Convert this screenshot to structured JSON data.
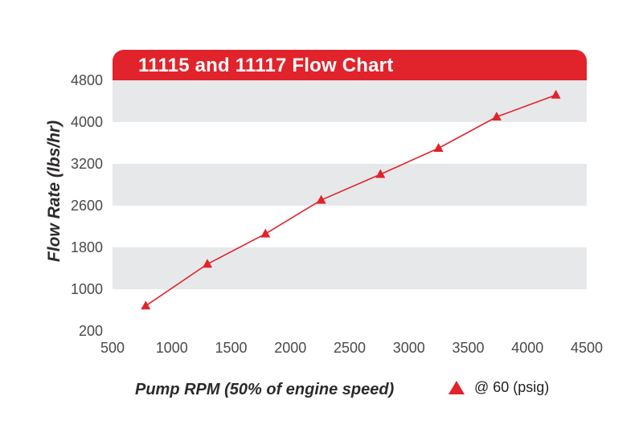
{
  "colors": {
    "red": "#e1232b",
    "band_gray": "#e7e8ea",
    "text_dark": "#2d2a2b",
    "tick": "#4a4a4c"
  },
  "header": {
    "title": "11115 and 11117 Flow Chart"
  },
  "chart_data": {
    "type": "line",
    "title": "11115 and 11117 Flow Chart",
    "xlabel": "Pump RPM (50% of engine speed)",
    "ylabel": "Flow Rate (lbs/hr)",
    "xlim": [
      500,
      4500
    ],
    "x_ticks": [
      500,
      1000,
      1500,
      2000,
      2500,
      3000,
      3500,
      4000,
      4500
    ],
    "y_ticks": [
      200,
      1000,
      1800,
      2600,
      3200,
      4000,
      4800
    ],
    "grid": "horizontal alternating white/gray bands, gray at top band",
    "legend_position": "bottom-right",
    "series": [
      {
        "name": "@ 60 (psig)",
        "marker": "triangle",
        "color": "#e1232b",
        "points": [
          {
            "rpm": 780,
            "flow": 680
          },
          {
            "rpm": 1300,
            "flow": 1480
          },
          {
            "rpm": 1790,
            "flow": 2060
          },
          {
            "rpm": 2260,
            "flow": 2680
          },
          {
            "rpm": 2760,
            "flow": 3050
          },
          {
            "rpm": 3250,
            "flow": 3500
          },
          {
            "rpm": 3740,
            "flow": 4100
          },
          {
            "rpm": 4240,
            "flow": 4520
          }
        ]
      }
    ]
  },
  "legend": {
    "label": "@ 60 (psig)"
  }
}
